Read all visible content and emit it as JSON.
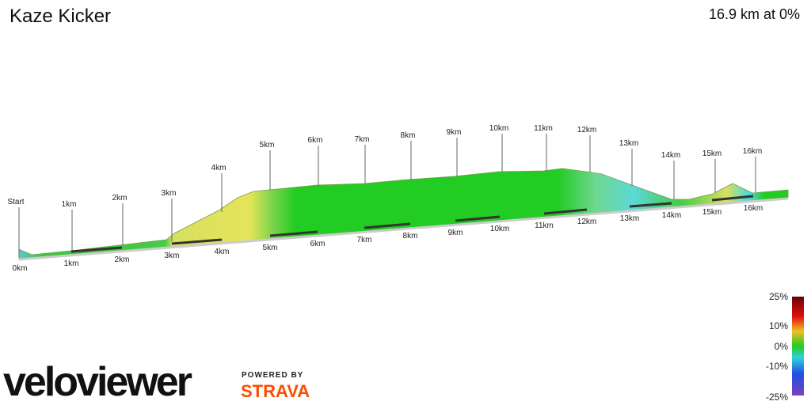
{
  "header": {
    "title": "Kaze Kicker",
    "summary": "16.9 km at 0%"
  },
  "profile": {
    "markers": [
      "Start",
      "1km",
      "2km",
      "3km",
      "4km",
      "5km",
      "6km",
      "7km",
      "8km",
      "9km",
      "10km",
      "11km",
      "12km",
      "13km",
      "14km",
      "15km",
      "16km"
    ],
    "distance_labels": [
      "0km",
      "1km",
      "2km",
      "3km",
      "4km",
      "5km",
      "6km",
      "7km",
      "8km",
      "9km",
      "10km",
      "11km",
      "12km",
      "13km",
      "14km",
      "15km",
      "16km"
    ]
  },
  "legend": {
    "labels": [
      "25%",
      "10%",
      "0%",
      "-10%",
      "-25%"
    ]
  },
  "footer": {
    "logo": "veloviewer",
    "powered_by": "POWERED BY",
    "partner": "STRAVA"
  }
}
